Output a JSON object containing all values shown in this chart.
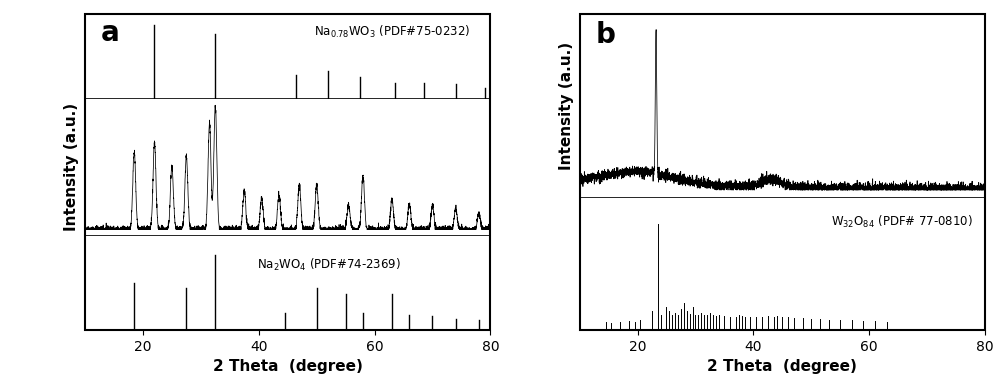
{
  "panel_a_label": "a",
  "panel_b_label": "b",
  "xlabel": "2 Theta  (degree)",
  "ylabel": "Intensity (a.u.)",
  "xlim": [
    10,
    80
  ],
  "xticks": [
    20,
    40,
    60,
    80
  ],
  "na078wo3_peaks": [
    22.0,
    32.5,
    46.5,
    52.0,
    57.5,
    63.5,
    68.5,
    74.0,
    79.0
  ],
  "na078wo3_heights": [
    1.0,
    0.88,
    0.32,
    0.38,
    0.3,
    0.22,
    0.22,
    0.2,
    0.15
  ],
  "na2wo4_peaks": [
    18.5,
    27.5,
    32.5,
    44.5,
    50.0,
    55.0,
    58.0,
    63.0,
    66.0,
    70.0,
    74.0,
    78.0
  ],
  "na2wo4_heights": [
    0.62,
    0.55,
    1.0,
    0.22,
    0.55,
    0.48,
    0.22,
    0.48,
    0.2,
    0.18,
    0.15,
    0.13
  ],
  "xrd_a_peaks": [
    18.5,
    22.0,
    25.0,
    27.5,
    31.5,
    32.5,
    37.5,
    40.5,
    43.5,
    47.0,
    50.0,
    55.5,
    58.0,
    63.0,
    66.0,
    70.0,
    74.0,
    78.0
  ],
  "xrd_a_heights": [
    0.55,
    0.62,
    0.45,
    0.52,
    0.75,
    0.88,
    0.28,
    0.22,
    0.25,
    0.32,
    0.32,
    0.18,
    0.38,
    0.22,
    0.18,
    0.17,
    0.15,
    0.12
  ],
  "w32o84_peaks": [
    14.5,
    15.5,
    17.0,
    18.5,
    19.5,
    20.5,
    22.5,
    23.5,
    24.0,
    25.0,
    25.5,
    26.0,
    26.5,
    27.0,
    27.5,
    28.0,
    28.5,
    29.0,
    29.5,
    30.0,
    30.5,
    31.0,
    31.5,
    32.0,
    32.5,
    33.0,
    33.5,
    34.0,
    35.0,
    36.0,
    37.0,
    37.5,
    38.0,
    38.5,
    39.5,
    40.5,
    41.5,
    42.5,
    43.5,
    44.0,
    45.0,
    46.0,
    47.0,
    48.5,
    50.0,
    51.5,
    53.0,
    55.0,
    57.0,
    59.0,
    61.0,
    63.0
  ],
  "w32o84_heights": [
    0.07,
    0.06,
    0.07,
    0.08,
    0.07,
    0.09,
    0.18,
    1.0,
    0.14,
    0.22,
    0.18,
    0.14,
    0.16,
    0.14,
    0.2,
    0.25,
    0.18,
    0.15,
    0.22,
    0.14,
    0.14,
    0.16,
    0.14,
    0.14,
    0.16,
    0.14,
    0.13,
    0.14,
    0.13,
    0.12,
    0.12,
    0.14,
    0.13,
    0.12,
    0.12,
    0.12,
    0.12,
    0.13,
    0.12,
    0.13,
    0.12,
    0.12,
    0.11,
    0.11,
    0.1,
    0.1,
    0.09,
    0.09,
    0.09,
    0.08,
    0.08,
    0.07
  ],
  "background_color": "#ffffff",
  "line_color": "#000000"
}
